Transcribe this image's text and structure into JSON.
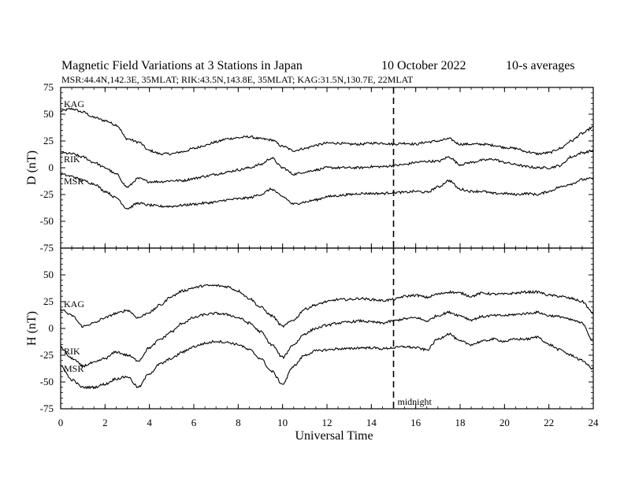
{
  "title": "Magnetic Field Variations at 3 Stations in Japan",
  "date": "10 October 2022",
  "averaging": "10-s averages",
  "stations_line": "MSR:44.4N,142.3E, 35MLAT;  RIK:43.5N,143.8E, 35MLAT;  KAG:31.5N,130.7E, 22MLAT",
  "xlabel": "Universal Time",
  "midnight_label": "midnight",
  "chart_data": [
    {
      "type": "line",
      "ylabel": "D (nT)",
      "xlim": [
        0,
        24
      ],
      "ylim": [
        -75,
        75
      ],
      "x_ticks": [
        0,
        2,
        4,
        6,
        8,
        10,
        12,
        14,
        16,
        18,
        20,
        22,
        24
      ],
      "y_ticks": [
        75,
        50,
        25,
        0,
        -25,
        -50,
        -75
      ],
      "midnight_ut": 15,
      "series": [
        {
          "name": "KAG",
          "x": [
            0,
            0.5,
            1,
            1.5,
            2,
            2.5,
            3,
            3.5,
            4,
            4.5,
            5,
            5.5,
            6,
            6.5,
            7,
            7.5,
            8,
            8.5,
            9,
            9.5,
            10,
            10.5,
            11,
            11.5,
            12,
            12.5,
            13,
            13.5,
            14,
            14.5,
            15,
            15.5,
            16,
            16.5,
            17,
            17.5,
            18,
            18.5,
            19,
            19.5,
            20,
            20.5,
            21,
            21.5,
            22,
            22.5,
            23,
            23.5,
            24
          ],
          "values": [
            53,
            55,
            52,
            47,
            44,
            40,
            27,
            24,
            16,
            13,
            13,
            15,
            18,
            21,
            24,
            27,
            28,
            29,
            27,
            26,
            20,
            16,
            18,
            21,
            23,
            23,
            22,
            22,
            23,
            23,
            22,
            23,
            22,
            24,
            25,
            27,
            22,
            22,
            22,
            21,
            19,
            18,
            15,
            13,
            14,
            18,
            25,
            32,
            38
          ]
        },
        {
          "name": "RIK",
          "x": [
            0,
            0.5,
            1,
            1.5,
            2,
            2.5,
            3,
            3.5,
            4,
            4.5,
            5,
            5.5,
            6,
            6.5,
            7,
            7.5,
            8,
            8.5,
            9,
            9.5,
            10,
            10.5,
            11,
            11.5,
            12,
            12.5,
            13,
            13.5,
            14,
            14.5,
            15,
            15.5,
            16,
            16.5,
            17,
            17.5,
            18,
            18.5,
            19,
            19.5,
            20,
            20.5,
            21,
            21.5,
            22,
            22.5,
            23,
            23.5,
            24
          ],
          "values": [
            14,
            13,
            10,
            5,
            0,
            -6,
            -18,
            -10,
            -13,
            -13,
            -12,
            -12,
            -10,
            -8,
            -6,
            -4,
            -2,
            0,
            3,
            9,
            0,
            -6,
            -4,
            -2,
            0,
            0,
            0,
            0,
            1,
            1,
            2,
            3,
            5,
            6,
            6,
            10,
            3,
            5,
            7,
            8,
            5,
            3,
            1,
            0,
            0,
            2,
            10,
            14,
            16
          ]
        },
        {
          "name": "MSR",
          "x": [
            0,
            0.5,
            1,
            1.5,
            2,
            2.5,
            3,
            3.5,
            4,
            4.5,
            5,
            5.5,
            6,
            6.5,
            7,
            7.5,
            8,
            8.5,
            9,
            9.5,
            10,
            10.5,
            11,
            11.5,
            12,
            12.5,
            13,
            13.5,
            14,
            14.5,
            15,
            15.5,
            16,
            16.5,
            17,
            17.5,
            18,
            18.5,
            19,
            19.5,
            20,
            20.5,
            21,
            21.5,
            22,
            22.5,
            23,
            23.5,
            24
          ],
          "values": [
            -6,
            -8,
            -12,
            -15,
            -22,
            -28,
            -38,
            -33,
            -35,
            -36,
            -36,
            -35,
            -34,
            -33,
            -32,
            -30,
            -29,
            -28,
            -25,
            -20,
            -27,
            -34,
            -32,
            -30,
            -27,
            -26,
            -25,
            -24,
            -24,
            -24,
            -23,
            -23,
            -22,
            -23,
            -18,
            -12,
            -20,
            -22,
            -22,
            -24,
            -24,
            -25,
            -24,
            -25,
            -22,
            -18,
            -15,
            -11,
            -10
          ]
        }
      ]
    },
    {
      "type": "line",
      "ylabel": "H (nT)",
      "xlim": [
        0,
        24
      ],
      "ylim": [
        -75,
        75
      ],
      "x_ticks": [
        0,
        2,
        4,
        6,
        8,
        10,
        12,
        14,
        16,
        18,
        20,
        22,
        24
      ],
      "y_ticks": [
        75,
        50,
        25,
        0,
        -25,
        -50,
        -75
      ],
      "midnight_ut": 15,
      "series": [
        {
          "name": "KAG",
          "x": [
            0,
            0.5,
            1,
            1.5,
            2,
            2.5,
            3,
            3.5,
            4,
            4.5,
            5,
            5.5,
            6,
            6.5,
            7,
            7.5,
            8,
            8.5,
            9,
            9.5,
            10,
            10.5,
            11,
            11.5,
            12,
            12.5,
            13,
            13.5,
            14,
            14.5,
            15,
            15.5,
            16,
            16.5,
            17,
            17.5,
            18,
            18.5,
            19,
            19.5,
            20,
            20.5,
            21,
            21.5,
            22,
            22.5,
            23,
            23.5,
            24
          ],
          "values": [
            18,
            12,
            2,
            5,
            10,
            14,
            17,
            10,
            15,
            22,
            30,
            35,
            38,
            40,
            40,
            39,
            35,
            28,
            20,
            12,
            2,
            8,
            18,
            22,
            25,
            27,
            27,
            28,
            27,
            26,
            27,
            30,
            31,
            29,
            32,
            34,
            33,
            30,
            33,
            32,
            32,
            33,
            34,
            34,
            31,
            30,
            28,
            25,
            14
          ]
        },
        {
          "name": "RIK",
          "x": [
            0,
            0.5,
            1,
            1.5,
            2,
            2.5,
            3,
            3.5,
            4,
            4.5,
            5,
            5.5,
            6,
            6.5,
            7,
            7.5,
            8,
            8.5,
            9,
            9.5,
            10,
            10.5,
            11,
            11.5,
            12,
            12.5,
            13,
            13.5,
            14,
            14.5,
            15,
            15.5,
            16,
            16.5,
            17,
            17.5,
            18,
            18.5,
            19,
            19.5,
            20,
            20.5,
            21,
            21.5,
            22,
            22.5,
            23,
            23.5,
            24
          ],
          "values": [
            -18,
            -28,
            -35,
            -32,
            -28,
            -22,
            -25,
            -30,
            -18,
            -10,
            -3,
            5,
            10,
            13,
            14,
            13,
            10,
            5,
            -3,
            -15,
            -27,
            -15,
            -5,
            0,
            3,
            5,
            6,
            7,
            6,
            5,
            7,
            9,
            10,
            7,
            12,
            15,
            12,
            8,
            11,
            12,
            12,
            13,
            14,
            15,
            12,
            11,
            8,
            5,
            -12
          ]
        },
        {
          "name": "MSR",
          "x": [
            0,
            0.5,
            1,
            1.5,
            2,
            2.5,
            3,
            3.5,
            4,
            4.5,
            5,
            5.5,
            6,
            6.5,
            7,
            7.5,
            8,
            8.5,
            9,
            9.5,
            10,
            10.5,
            11,
            11.5,
            12,
            12.5,
            13,
            13.5,
            14,
            14.5,
            15,
            15.5,
            16,
            16.5,
            17,
            17.5,
            18,
            18.5,
            19,
            19.5,
            20,
            20.5,
            21,
            21.5,
            22,
            22.5,
            23,
            23.5,
            24
          ],
          "values": [
            -35,
            -48,
            -55,
            -55,
            -52,
            -47,
            -45,
            -55,
            -42,
            -33,
            -28,
            -22,
            -17,
            -14,
            -12,
            -13,
            -15,
            -20,
            -28,
            -40,
            -52,
            -35,
            -25,
            -21,
            -20,
            -19,
            -19,
            -18,
            -18,
            -19,
            -18,
            -17,
            -18,
            -20,
            -10,
            -5,
            -12,
            -15,
            -12,
            -10,
            -12,
            -10,
            -10,
            -8,
            -15,
            -20,
            -25,
            -30,
            -38
          ]
        }
      ]
    }
  ]
}
